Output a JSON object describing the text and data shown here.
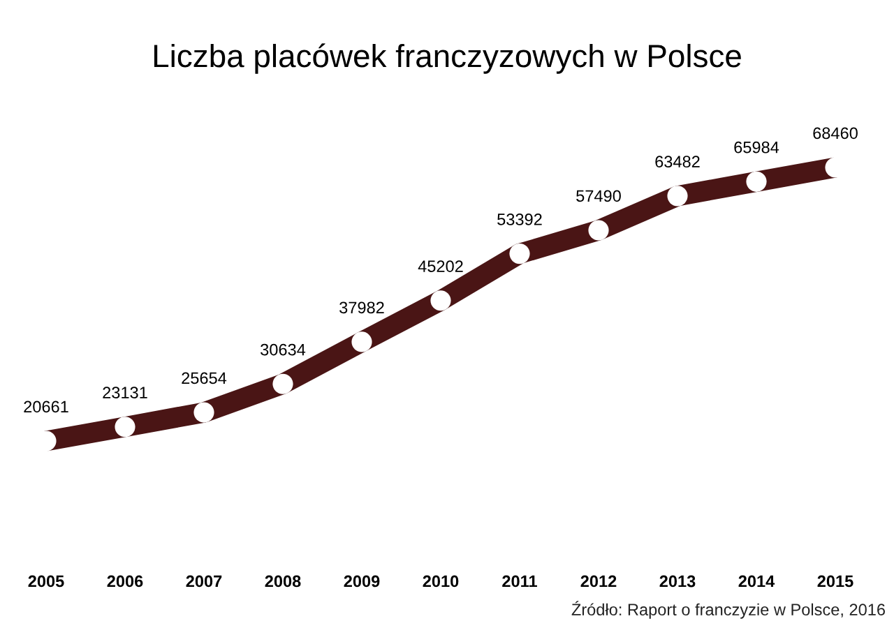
{
  "chart_data": {
    "type": "line",
    "title": "Liczba placówek franczyzowych w Polsce",
    "categories": [
      "2005",
      "2006",
      "2007",
      "2008",
      "2009",
      "2010",
      "2011",
      "2012",
      "2013",
      "2014",
      "2015"
    ],
    "series": [
      {
        "color": "#4a1515",
        "values": [
          20661,
          23131,
          25654,
          30634,
          37982,
          45202,
          53392,
          57490,
          63482,
          65984,
          68460
        ]
      }
    ],
    "tick_labels": "x",
    "marker": "circle",
    "line_style": "solid",
    "data_labels": true,
    "grid": false,
    "annotations": [
      "Źródło: Raport o franczyzie w Polsce, 2016"
    ]
  }
}
